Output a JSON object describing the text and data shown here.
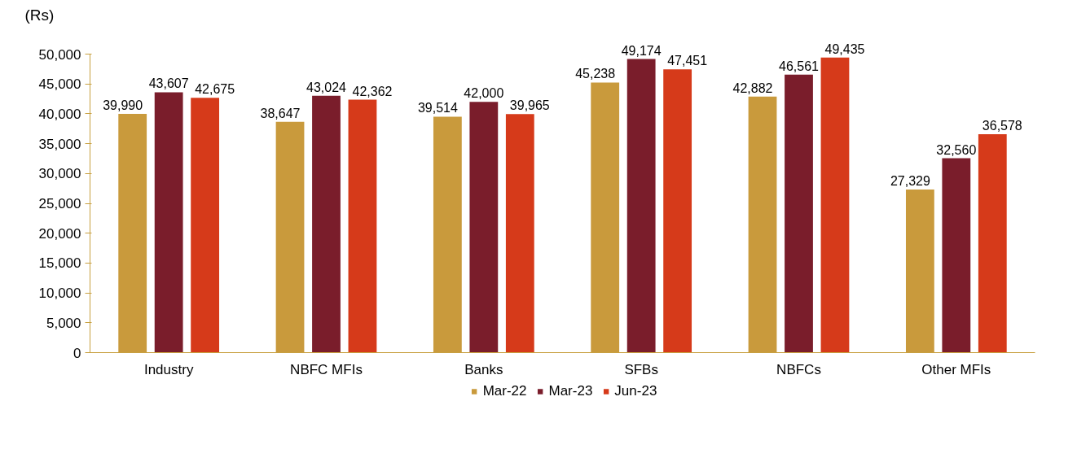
{
  "chart_data": {
    "type": "bar",
    "ylabel": "(Rs)",
    "categories": [
      "Industry",
      "NBFC MFIs",
      "Banks",
      "SFBs",
      "NBFCs",
      "Other MFIs"
    ],
    "series": [
      {
        "name": "Mar-22",
        "color": "#c99a3c",
        "values": [
          39990,
          38647,
          39514,
          45238,
          42882,
          27329
        ],
        "value_labels": [
          "39,990",
          "38,647",
          "39,514",
          "45,238",
          "42,882",
          "27,329"
        ]
      },
      {
        "name": "Mar-23",
        "color": "#7a1d2b",
        "values": [
          43607,
          43024,
          42000,
          49174,
          46561,
          32560
        ],
        "value_labels": [
          "43,607",
          "43,024",
          "42,000",
          "49,174",
          "46,561",
          "32,560"
        ]
      },
      {
        "name": "Jun-23",
        "color": "#d63a1a",
        "values": [
          42675,
          42362,
          39965,
          47451,
          49435,
          36578
        ],
        "value_labels": [
          "42,675",
          "42,362",
          "39,965",
          "47,451",
          "49,435",
          "36,578"
        ]
      }
    ],
    "ylim": [
      0,
      50000
    ],
    "yticks": [
      {
        "value": 0,
        "label": "0"
      },
      {
        "value": 5000,
        "label": "5,000"
      },
      {
        "value": 10000,
        "label": "10,000"
      },
      {
        "value": 15000,
        "label": "15,000"
      },
      {
        "value": 20000,
        "label": "20,000"
      },
      {
        "value": 25000,
        "label": "25,000"
      },
      {
        "value": 30000,
        "label": "30,000"
      },
      {
        "value": 35000,
        "label": "35,000"
      },
      {
        "value": 40000,
        "label": "40,000"
      },
      {
        "value": 45000,
        "label": "45,000"
      },
      {
        "value": 50000,
        "label": "50,000"
      }
    ],
    "legend": "bottom"
  }
}
